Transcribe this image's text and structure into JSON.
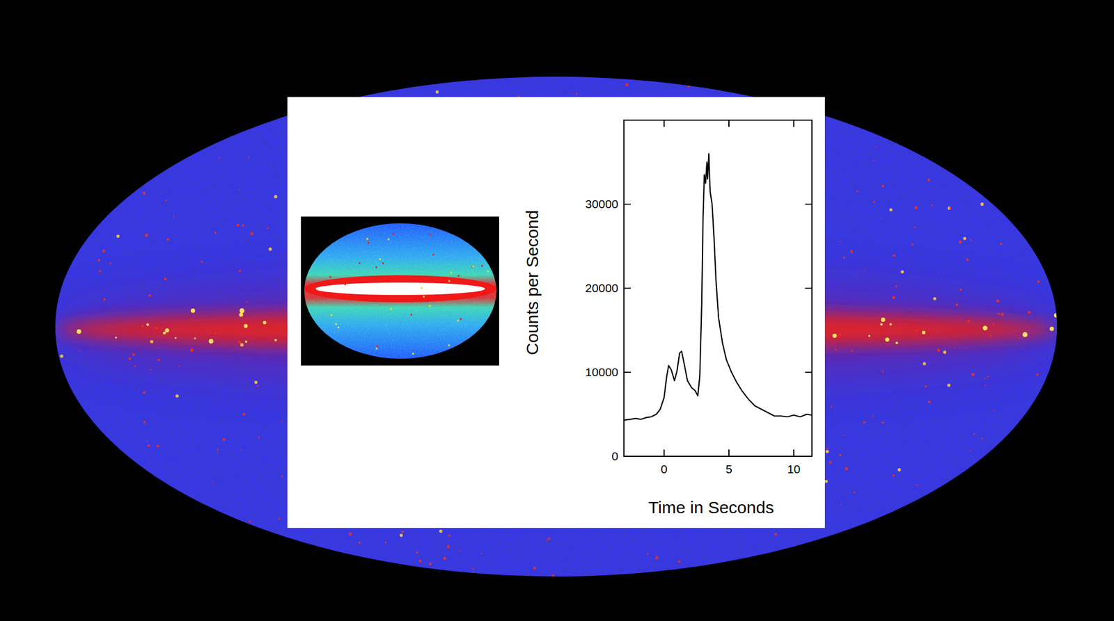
{
  "chart_data": {
    "type": "line",
    "x_label": "Time in Seconds",
    "y_label": "Counts per Second",
    "color": "#000000",
    "xlim": [
      -3.1,
      11.4
    ],
    "ylim": [
      0,
      40000
    ],
    "xticks": [
      0,
      5,
      10
    ],
    "yticks": [
      0,
      10000,
      20000,
      30000
    ],
    "x": [
      -3.1,
      -2.6,
      -2.2,
      -1.8,
      -1.4,
      -1.0,
      -0.6,
      -0.3,
      0.0,
      0.2,
      0.35,
      0.55,
      0.8,
      1.0,
      1.2,
      1.35,
      1.55,
      1.8,
      2.1,
      2.4,
      2.6,
      2.75,
      2.9,
      3.0,
      3.1,
      3.2,
      3.3,
      3.35,
      3.45,
      3.55,
      3.7,
      3.85,
      4.0,
      4.2,
      4.5,
      4.8,
      5.2,
      5.6,
      6.0,
      6.5,
      7.0,
      7.5,
      8.0,
      8.5,
      9.0,
      9.5,
      10.0,
      10.5,
      11.0,
      11.4
    ],
    "values": [
      4300,
      4400,
      4500,
      4400,
      4600,
      4700,
      5000,
      5600,
      7000,
      9500,
      10800,
      10300,
      9000,
      10200,
      12300,
      12500,
      11000,
      9000,
      8200,
      7800,
      7200,
      9500,
      18000,
      28000,
      33500,
      32500,
      35000,
      33000,
      36000,
      31500,
      30000,
      26000,
      21000,
      16500,
      13500,
      11500,
      10000,
      8800,
      7800,
      6800,
      6000,
      5600,
      5200,
      4800,
      4800,
      4700,
      4900,
      4700,
      5000,
      4900
    ]
  }
}
